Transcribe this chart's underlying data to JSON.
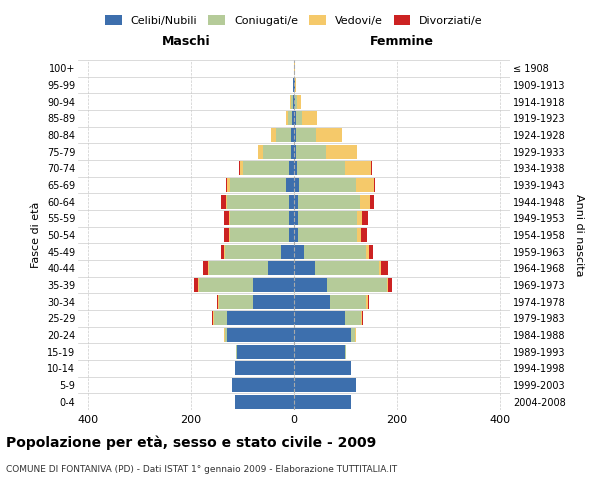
{
  "age_groups": [
    "0-4",
    "5-9",
    "10-14",
    "15-19",
    "20-24",
    "25-29",
    "30-34",
    "35-39",
    "40-44",
    "45-49",
    "50-54",
    "55-59",
    "60-64",
    "65-69",
    "70-74",
    "75-79",
    "80-84",
    "85-89",
    "90-94",
    "95-99",
    "100+"
  ],
  "birth_years": [
    "2004-2008",
    "1999-2003",
    "1994-1998",
    "1989-1993",
    "1984-1988",
    "1979-1983",
    "1974-1978",
    "1969-1973",
    "1964-1968",
    "1959-1963",
    "1954-1958",
    "1949-1953",
    "1944-1948",
    "1939-1943",
    "1934-1938",
    "1929-1933",
    "1924-1928",
    "1919-1923",
    "1914-1918",
    "1909-1913",
    "≤ 1908"
  ],
  "maschi": {
    "celibi": [
      115,
      120,
      115,
      110,
      130,
      130,
      80,
      80,
      50,
      25,
      10,
      10,
      10,
      15,
      10,
      5,
      5,
      3,
      2,
      1,
      0
    ],
    "coniugati": [
      0,
      0,
      0,
      2,
      5,
      25,
      65,
      105,
      115,
      110,
      115,
      115,
      120,
      110,
      90,
      55,
      30,
      8,
      3,
      1,
      0
    ],
    "vedovi": [
      0,
      0,
      0,
      0,
      2,
      3,
      2,
      2,
      2,
      2,
      2,
      2,
      3,
      5,
      5,
      10,
      10,
      5,
      2,
      0,
      0
    ],
    "divorziati": [
      0,
      0,
      0,
      0,
      0,
      2,
      3,
      8,
      10,
      5,
      10,
      10,
      8,
      2,
      2,
      0,
      0,
      0,
      0,
      0,
      0
    ]
  },
  "femmine": {
    "nubili": [
      110,
      120,
      110,
      100,
      110,
      100,
      70,
      65,
      40,
      20,
      8,
      8,
      8,
      10,
      5,
      3,
      3,
      3,
      2,
      1,
      0
    ],
    "coniugate": [
      0,
      0,
      0,
      2,
      8,
      30,
      70,
      115,
      125,
      120,
      115,
      115,
      120,
      110,
      95,
      60,
      40,
      12,
      4,
      1,
      0
    ],
    "vedove": [
      0,
      0,
      0,
      0,
      2,
      3,
      3,
      3,
      5,
      5,
      8,
      10,
      20,
      35,
      50,
      60,
      50,
      30,
      8,
      2,
      1
    ],
    "divorziate": [
      0,
      0,
      0,
      0,
      0,
      2,
      3,
      8,
      12,
      8,
      10,
      10,
      8,
      2,
      2,
      0,
      0,
      0,
      0,
      0,
      0
    ]
  },
  "colors": {
    "celibi": "#3d6fad",
    "coniugati": "#b5cb99",
    "vedovi": "#f5c96a",
    "divorziati": "#cc2222"
  },
  "title": "Popolazione per età, sesso e stato civile - 2009",
  "subtitle": "COMUNE DI FONTANIVA (PD) - Dati ISTAT 1° gennaio 2009 - Elaborazione TUTTITALIA.IT",
  "xlabel_left": "Maschi",
  "xlabel_right": "Femmine",
  "ylabel_left": "Fasce di età",
  "ylabel_right": "Anni di nascita",
  "xlim": 420,
  "background_color": "#ffffff",
  "grid_color": "#cccccc"
}
